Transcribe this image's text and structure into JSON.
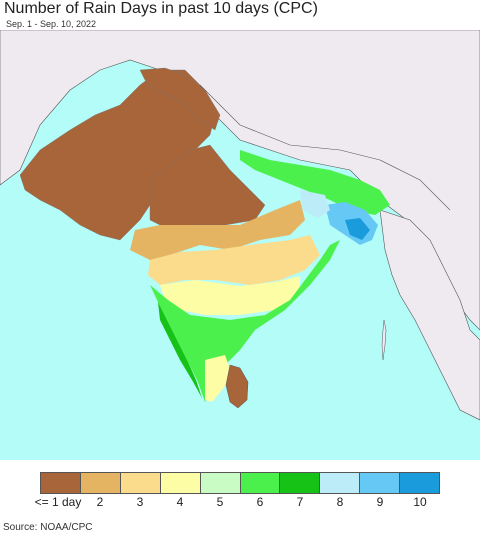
{
  "header": {
    "title": "Number of Rain Days in past 10 days (CPC)",
    "date_range": "Sep. 1 - Sep. 10, 2022"
  },
  "legend": {
    "items": [
      {
        "label": "<= 1 day",
        "color": "#a8653a"
      },
      {
        "label": "2",
        "color": "#e5b463"
      },
      {
        "label": "3",
        "color": "#fbdb8c"
      },
      {
        "label": "4",
        "color": "#fdfda6"
      },
      {
        "label": "5",
        "color": "#c8fcc4"
      },
      {
        "label": "6",
        "color": "#4cf04c"
      },
      {
        "label": "7",
        "color": "#16c216"
      },
      {
        "label": "8",
        "color": "#bcecf8"
      },
      {
        "label": "9",
        "color": "#66c8f4"
      },
      {
        "label": "10",
        "color": "#1a9cdc"
      }
    ]
  },
  "footer": {
    "source": "Source: NOAA/CPC"
  },
  "colors": {
    "ocean": "#b3fcf8",
    "outside_land": "#eeeaf0",
    "boundary": "#444444"
  }
}
